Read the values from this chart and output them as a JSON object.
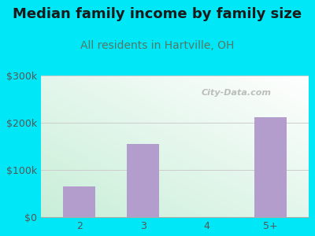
{
  "title": "Median family income by family size",
  "subtitle": "All residents in Hartville, OH",
  "categories": [
    "2",
    "3",
    "4",
    "5+"
  ],
  "values": [
    65000,
    155000,
    0,
    212000
  ],
  "bar_color": "#b39dcc",
  "title_fontsize": 13,
  "subtitle_fontsize": 10,
  "subtitle_color": "#557766",
  "title_color": "#1a1a1a",
  "tick_color": "#555555",
  "ylim": [
    0,
    300000
  ],
  "yticks": [
    0,
    100000,
    200000,
    300000
  ],
  "ytick_labels": [
    "$0",
    "$100k",
    "$200k",
    "$300k"
  ],
  "bg_outer": "#00e8f8",
  "watermark": "City-Data.com",
  "bar_width": 0.5
}
